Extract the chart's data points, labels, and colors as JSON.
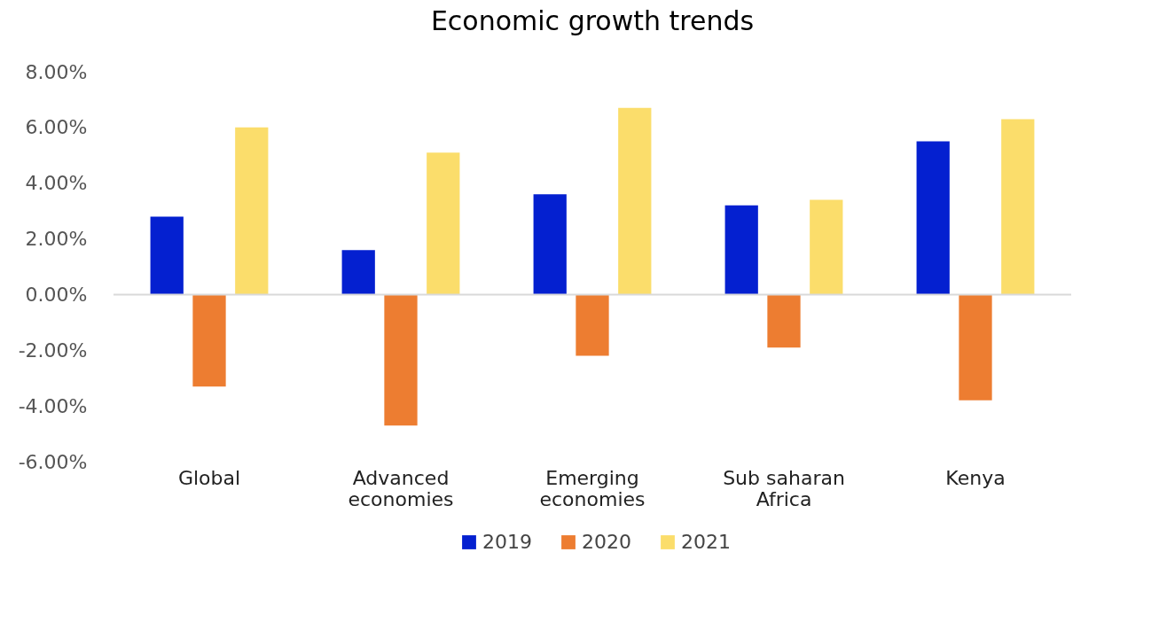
{
  "chart_data": {
    "type": "bar",
    "title": "Economic growth trends",
    "categories": [
      "Global",
      "Advanced economies",
      "Emerging economies",
      "Sub saharan Africa",
      "Kenya"
    ],
    "series": [
      {
        "name": "2019",
        "color": "#0420d0",
        "values": [
          2.8,
          1.6,
          3.6,
          3.2,
          5.5
        ]
      },
      {
        "name": "2020",
        "color": "#ed7d31",
        "values": [
          -3.3,
          -4.7,
          -2.2,
          -1.9,
          -3.8
        ]
      },
      {
        "name": "2021",
        "color": "#fbdd6b",
        "values": [
          6.0,
          5.1,
          6.7,
          3.4,
          6.3
        ]
      }
    ],
    "ylim": [
      -6,
      8
    ],
    "yticks": [
      {
        "value": -6,
        "label": "-6.00%"
      },
      {
        "value": -4,
        "label": "-4.00%"
      },
      {
        "value": -2,
        "label": "-2.00%"
      },
      {
        "value": 0,
        "label": "0.00%"
      },
      {
        "value": 2,
        "label": "2.00%"
      },
      {
        "value": 4,
        "label": "4.00%"
      },
      {
        "value": 6,
        "label": "6.00%"
      },
      {
        "value": 8,
        "label": "8.00%"
      }
    ],
    "ref_lines": [
      {
        "axis": "y",
        "value": 0,
        "color": "#d9d9d9"
      }
    ],
    "grid": false,
    "legend": "bottom"
  }
}
